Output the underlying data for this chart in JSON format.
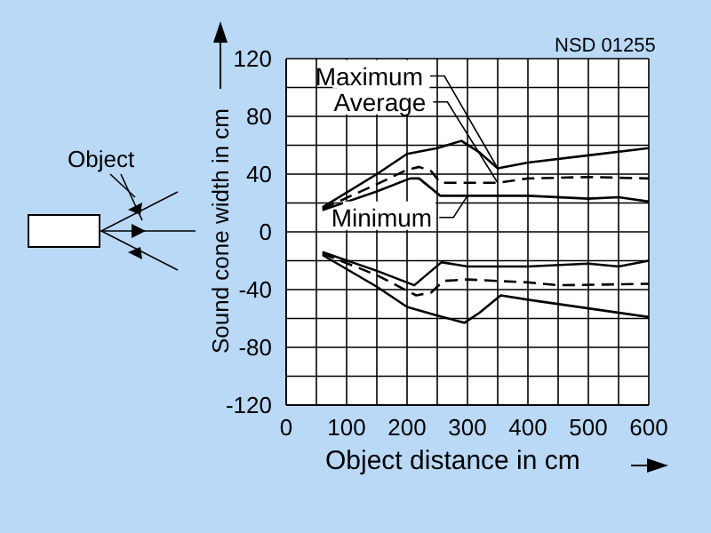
{
  "chart_data": {
    "type": "line",
    "xlabel": "Object distance in cm",
    "ylabel": "Sound cone width in cm",
    "annotations": [
      "NSD 01255",
      "Object"
    ],
    "xlim": [
      0,
      600
    ],
    "ylim": [
      -120,
      120
    ],
    "xticks": [
      0,
      {
        "value": 50,
        "label": null
      },
      100,
      {
        "value": 150,
        "label": null
      },
      200,
      {
        "value": 250,
        "label": null
      },
      300,
      {
        "value": 350,
        "label": null
      },
      400,
      {
        "value": 450,
        "label": null
      },
      500,
      {
        "value": 550,
        "label": null
      },
      600
    ],
    "yticks": [
      -120,
      {
        "value": -100,
        "label": null
      },
      -80,
      {
        "value": -60,
        "label": null
      },
      -40,
      {
        "value": -20,
        "label": null
      },
      0,
      {
        "value": 20,
        "label": null
      },
      40,
      {
        "value": 60,
        "label": null
      },
      80,
      {
        "value": 100,
        "label": null
      },
      120
    ],
    "grid": true,
    "marker": "none",
    "series": [
      {
        "name": "Maximum",
        "color": "#000000",
        "line_style": "solid",
        "x": [
          60,
          150,
          200,
          250,
          290,
          320,
          350,
          400,
          500,
          600
        ],
        "values": [
          17,
          40,
          54,
          58,
          63,
          55,
          44,
          48,
          53,
          58
        ]
      },
      {
        "name": "Average",
        "color": "#000000",
        "line_style": "dashed",
        "x": [
          60,
          150,
          200,
          220,
          240,
          255,
          350,
          400,
          500,
          600
        ],
        "values": [
          16,
          33,
          43,
          45,
          42,
          34,
          34,
          37,
          38,
          37
        ]
      },
      {
        "name": "Minimum",
        "color": "#000000",
        "line_style": "solid",
        "x": [
          60,
          150,
          205,
          220,
          255,
          300,
          350,
          400,
          500,
          550,
          600
        ],
        "values": [
          15,
          28,
          37,
          37,
          25,
          25,
          25,
          25,
          23,
          24,
          21
        ]
      },
      {
        "color": "#000000",
        "line_style": "solid",
        "x": [
          60,
          150,
          200,
          250,
          295,
          320,
          355,
          400,
          500,
          600
        ],
        "values": [
          -16,
          -38,
          -52,
          -58,
          -63,
          -56,
          -44,
          -47,
          -53,
          -59
        ]
      },
      {
        "color": "#000000",
        "line_style": "dashed",
        "x": [
          60,
          150,
          215,
          240,
          260,
          300,
          400,
          450,
          600
        ],
        "values": [
          -15,
          -30,
          -44,
          -42,
          -34,
          -33,
          -35,
          -37,
          -36
        ]
      },
      {
        "color": "#000000",
        "line_style": "solid",
        "x": [
          60,
          150,
          212,
          257,
          300,
          400,
          500,
          550,
          600
        ],
        "values": [
          -14,
          -27,
          -37,
          -21,
          -24,
          -24,
          -22,
          -24,
          -20
        ]
      }
    ]
  }
}
